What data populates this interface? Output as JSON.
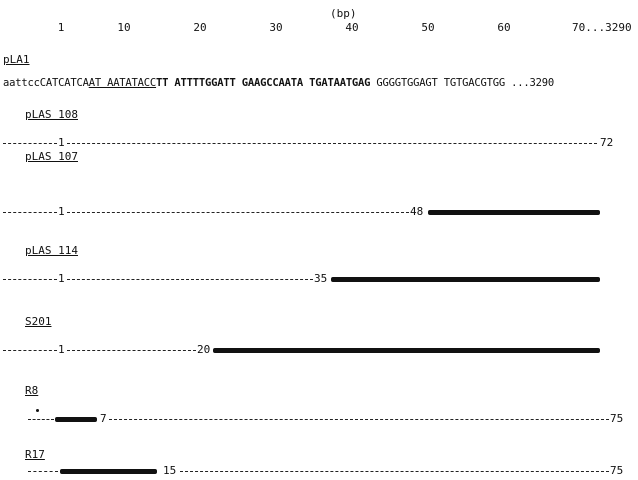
{
  "unit": "(bp)",
  "scale_ticks": [
    "1",
    "10",
    "20",
    "30",
    "40",
    "50",
    "60",
    "70...3290"
  ],
  "sequence": {
    "name": "pLA1",
    "parts": [
      {
        "text": "aattccCATCATCA",
        "style": "plain"
      },
      {
        "text": "AT AATATACC",
        "style": "underline"
      },
      {
        "text": "TT ATTTTGGATT GAAGCCAATA TGATAATGAG",
        "style": "bold"
      },
      {
        "text": " GGGGTGGAGT TGTGACGTGG ...3290",
        "style": "plain"
      }
    ]
  },
  "clones": [
    {
      "name": "pLAS 108",
      "start_label": "1",
      "end_label": "72"
    },
    {
      "name": "pLAS 107",
      "start_label": "1",
      "end_label": "48"
    },
    {
      "name": "pLAS 114",
      "start_label": "1",
      "end_label": "35"
    },
    {
      "name": "S201",
      "start_label": "1",
      "end_label": "20"
    },
    {
      "name": "R8",
      "start_label": "",
      "mid_label": "7",
      "end_label": "75"
    },
    {
      "name": "R17",
      "start_label": "",
      "mid_label": "15",
      "end_label": "75"
    }
  ]
}
